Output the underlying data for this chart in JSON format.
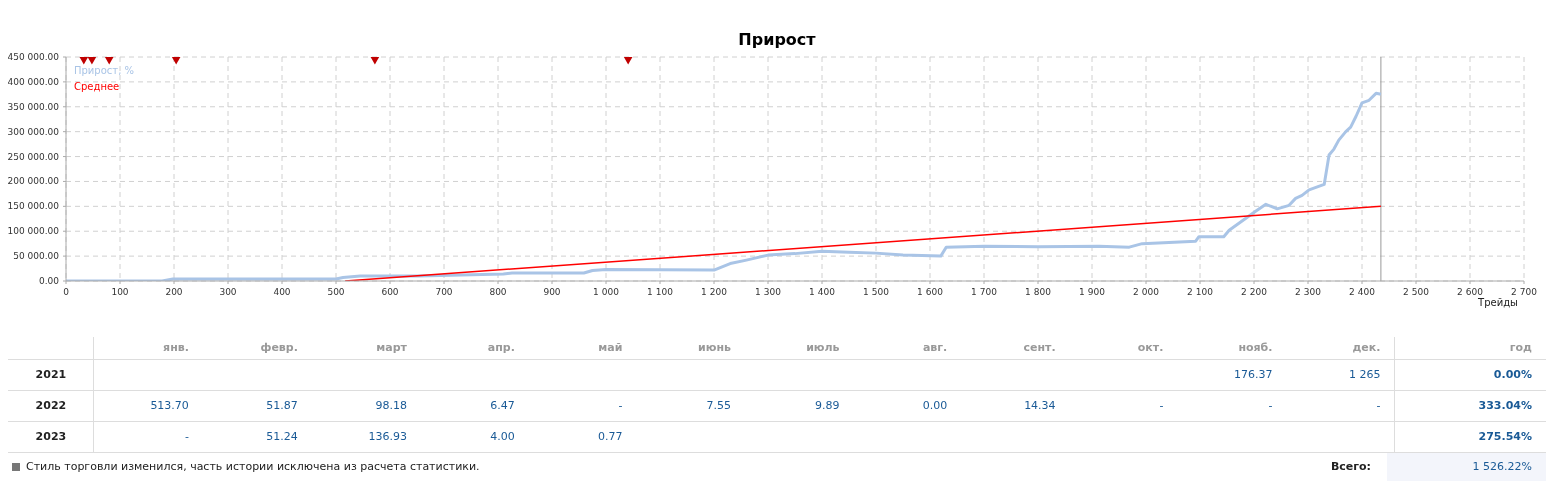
{
  "chart_data": {
    "type": "line",
    "title": "Прирост",
    "xlabel": "Трейды",
    "xlim": [
      0,
      2700
    ],
    "xticks": [
      0,
      100,
      200,
      300,
      400,
      500,
      600,
      700,
      800,
      900,
      {
        "value": 1000,
        "label": "1 000"
      },
      {
        "value": 1100,
        "label": "1 100"
      },
      {
        "value": 1200,
        "label": "1 200"
      },
      {
        "value": 1300,
        "label": "1 300"
      },
      {
        "value": 1400,
        "label": "1 400"
      },
      {
        "value": 1500,
        "label": "1 500"
      },
      {
        "value": 1600,
        "label": "1 600"
      },
      {
        "value": 1700,
        "label": "1 700"
      },
      {
        "value": 1800,
        "label": "1 800"
      },
      {
        "value": 1900,
        "label": "1 900"
      },
      {
        "value": 2000,
        "label": "2 000"
      },
      {
        "value": 2100,
        "label": "2 100"
      },
      {
        "value": 2200,
        "label": "2 200"
      },
      {
        "value": 2300,
        "label": "2 300"
      },
      {
        "value": 2400,
        "label": "2 400"
      },
      {
        "value": 2500,
        "label": "2 500"
      },
      {
        "value": 2600,
        "label": "2 600"
      },
      {
        "value": 2700,
        "label": "2 700"
      }
    ],
    "ylim": [
      0,
      450000
    ],
    "yticks": [
      {
        "value": 0,
        "label": "0.00"
      },
      {
        "value": 50000,
        "label": "50 000.00"
      },
      {
        "value": 100000,
        "label": "100 000.00"
      },
      {
        "value": 150000,
        "label": "150 000.00"
      },
      {
        "value": 200000,
        "label": "200 000.00"
      },
      {
        "value": 250000,
        "label": "250 000.00"
      },
      {
        "value": 300000,
        "label": "300 000.00"
      },
      {
        "value": 350000,
        "label": "350 000.00"
      },
      {
        "value": 400000,
        "label": "400 000.00"
      },
      {
        "value": 450000,
        "label": "450 000.00"
      }
    ],
    "grid": true,
    "legend": "top left",
    "line_style": "solid",
    "series": [
      {
        "name": "Прирост, %",
        "color": "#a9c4e6",
        "x": [
          0,
          178,
          198,
          500,
          513,
          545,
          653,
          810,
          826,
          959,
          975,
          1000,
          1200,
          1230,
          1260,
          1300,
          1350,
          1400,
          1450,
          1500,
          1550,
          1620,
          1630,
          1700,
          1800,
          1913,
          1969,
          1993,
          2092,
          2098,
          2144,
          2154,
          2185,
          2203,
          2222,
          2243,
          2265,
          2277,
          2289,
          2302,
          2330,
          2339,
          2348,
          2357,
          2370,
          2379,
          2389,
          2400,
          2413,
          2426,
          2435
        ],
        "values": [
          0,
          0,
          4000,
          4000,
          7000,
          10000,
          10000,
          14000,
          16000,
          16000,
          21000,
          23000,
          22000,
          35000,
          42000,
          52000,
          55000,
          60000,
          58000,
          56000,
          52000,
          50000,
          68000,
          70000,
          69000,
          70000,
          68000,
          75000,
          80000,
          89000,
          89000,
          102000,
          126000,
          140000,
          154000,
          145000,
          152000,
          166000,
          172000,
          183000,
          194000,
          253000,
          265000,
          283000,
          300000,
          309000,
          331000,
          358000,
          363000,
          377000,
          375000
        ]
      },
      {
        "name": "Среднее",
        "color": "#ff0000",
        "x": [
          517,
          2435
        ],
        "values": [
          0,
          150000
        ]
      },
      {
        "type": "scatter",
        "marker": "diamond",
        "color": "#c00000",
        "x": [
          33,
          48,
          80,
          204,
          572,
          1041
        ],
        "values": [
          450000,
          450000,
          450000,
          450000,
          450000,
          450000
        ]
      }
    ],
    "ref_lines": [
      {
        "axis": "x",
        "value": 2435,
        "label": null,
        "color": "#999999"
      }
    ],
    "annotations": [
      "янв.",
      "февр.",
      "март",
      "апр.",
      "май",
      "июнь",
      "июль",
      "авг.",
      "сент.",
      "окт.",
      "нояб.",
      "дек.",
      "год",
      "2021",
      "176.37",
      "1 265",
      "0.00%",
      "2022",
      "513.70",
      "51.87",
      "98.18",
      "6.47",
      "-",
      "7.55",
      "9.89",
      "0.00",
      "14.34",
      "-",
      "-",
      "-",
      "333.04%",
      "2023",
      "-",
      "51.24",
      "136.93",
      "4.00",
      "0.77",
      "275.54%",
      "Стиль торговли изменился, часть истории исключена из расчета статистики.",
      "Всего:",
      "1 526.22%"
    ]
  }
}
